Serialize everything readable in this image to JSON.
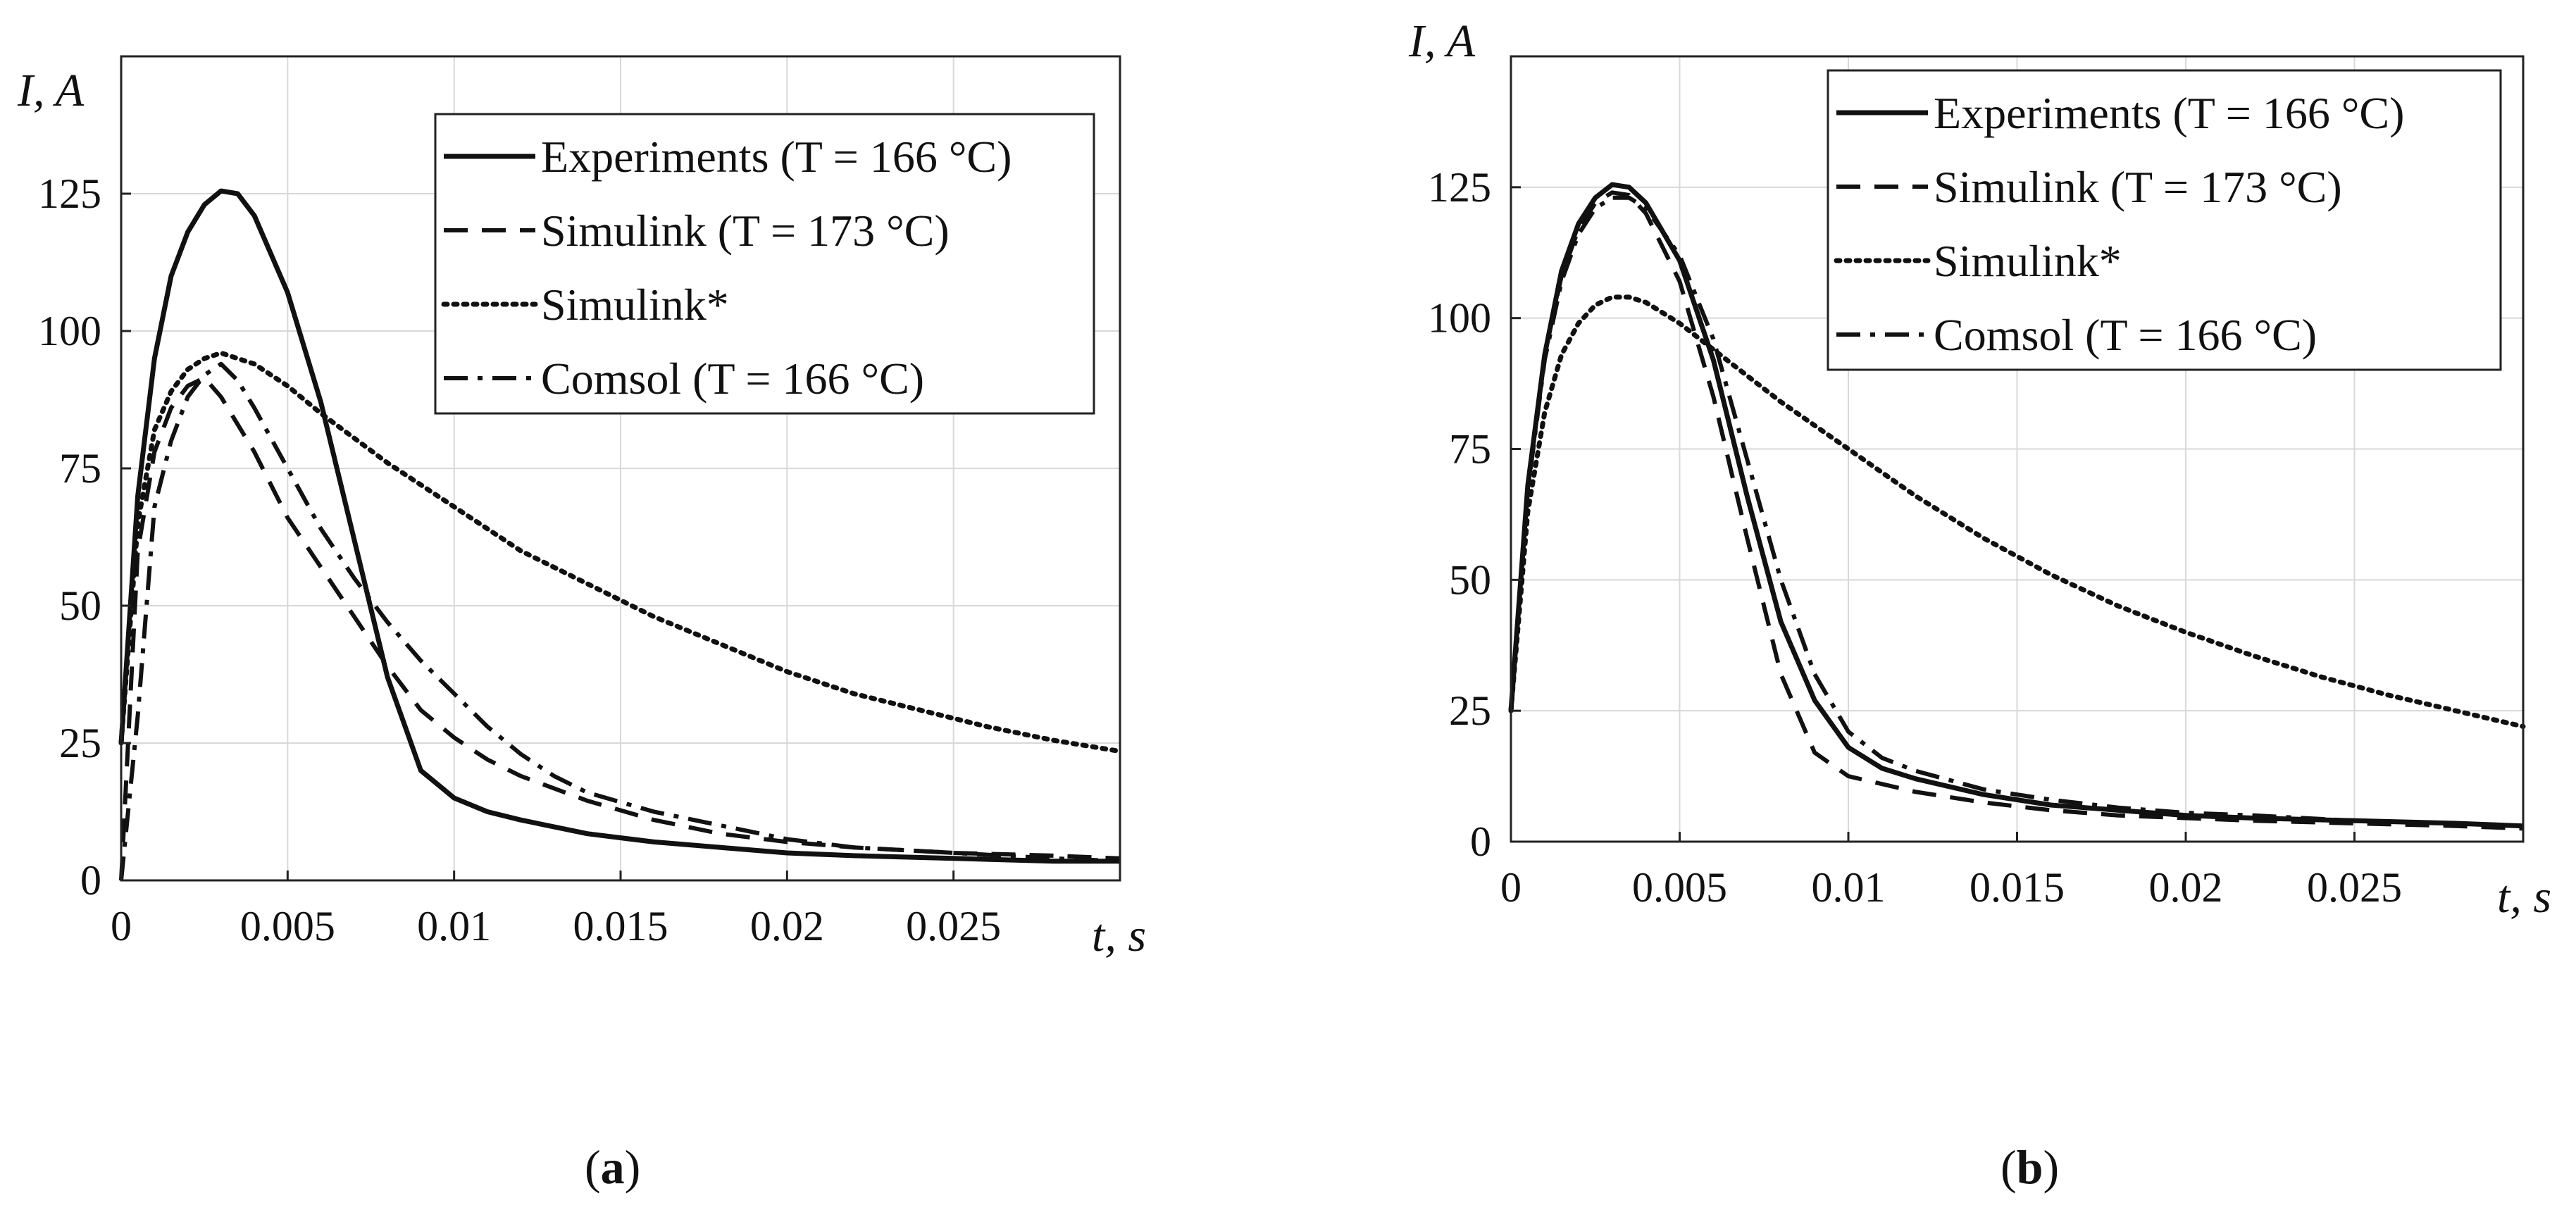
{
  "chart_data": [
    {
      "type": "line",
      "panel_label": "a",
      "xlabel": "t, s",
      "ylabel": "I, A",
      "xlim": [
        0,
        0.03
      ],
      "ylim": [
        0,
        150
      ],
      "xticks": [
        0,
        0.005,
        0.01,
        0.015,
        0.02,
        0.025
      ],
      "xtick_labels": [
        "0",
        "0.005",
        "0.01",
        "0.015",
        "0.02",
        "0.025"
      ],
      "yticks": [
        0,
        25,
        50,
        75,
        100,
        125
      ],
      "ytick_labels": [
        "0",
        "25",
        "50",
        "75",
        "100",
        "125"
      ],
      "grid": true,
      "legend_position": "top-right",
      "series": [
        {
          "name": "Experiments (T = 166 °C)",
          "style": "solid",
          "x": [
            0,
            0.0005,
            0.001,
            0.0015,
            0.002,
            0.0025,
            0.003,
            0.0035,
            0.004,
            0.005,
            0.006,
            0.007,
            0.008,
            0.009,
            0.01,
            0.011,
            0.012,
            0.014,
            0.016,
            0.018,
            0.02,
            0.022,
            0.025,
            0.028,
            0.03
          ],
          "y": [
            25,
            70,
            95,
            110,
            118,
            123,
            125.5,
            125,
            121,
            107,
            87,
            62,
            37,
            20,
            15,
            12.5,
            11,
            8.5,
            7,
            6,
            5,
            4.5,
            4,
            3.5,
            3.5
          ]
        },
        {
          "name": "Simulink (T = 173 °C)",
          "style": "dashed",
          "x": [
            0,
            0.0005,
            0.001,
            0.0015,
            0.002,
            0.0025,
            0.003,
            0.004,
            0.005,
            0.006,
            0.007,
            0.008,
            0.009,
            0.01,
            0.011,
            0.012,
            0.014,
            0.016,
            0.018,
            0.02,
            0.022,
            0.025,
            0.028,
            0.03
          ],
          "y": [
            0,
            60,
            78,
            86,
            90,
            91.5,
            88,
            78,
            66,
            57,
            48,
            39,
            31,
            26,
            22,
            19,
            14.5,
            11,
            8.5,
            7,
            6,
            5,
            4.5,
            4
          ]
        },
        {
          "name": "Simulink*",
          "style": "dotted",
          "x": [
            0,
            0.0005,
            0.001,
            0.0015,
            0.002,
            0.0025,
            0.003,
            0.004,
            0.005,
            0.006,
            0.008,
            0.01,
            0.012,
            0.014,
            0.016,
            0.018,
            0.02,
            0.022,
            0.024,
            0.026,
            0.028,
            0.03
          ],
          "y": [
            25,
            65,
            82,
            89,
            93,
            95,
            96,
            94,
            90,
            85,
            76,
            68,
            60,
            54,
            48,
            43,
            38,
            34,
            31,
            28,
            25.5,
            23.5
          ]
        },
        {
          "name": "Comsol (T = 166 °C)",
          "style": "dashdot",
          "x": [
            0,
            0.0005,
            0.001,
            0.0015,
            0.002,
            0.0025,
            0.003,
            0.0035,
            0.004,
            0.005,
            0.006,
            0.007,
            0.008,
            0.009,
            0.01,
            0.011,
            0.012,
            0.013,
            0.014,
            0.016,
            0.018,
            0.02,
            0.022,
            0.025,
            0.028,
            0.03
          ],
          "y": [
            0,
            30,
            68,
            80,
            88,
            92,
            94,
            91,
            86,
            75,
            64,
            55,
            47,
            40,
            34,
            28,
            23,
            19,
            16,
            12.5,
            10,
            7.5,
            6,
            5,
            4,
            3.5
          ]
        }
      ]
    },
    {
      "type": "line",
      "panel_label": "b",
      "xlabel": "t, s",
      "ylabel": "I, A",
      "xlim": [
        0,
        0.03
      ],
      "ylim": [
        0,
        150
      ],
      "xticks": [
        0,
        0.005,
        0.01,
        0.015,
        0.02,
        0.025
      ],
      "xtick_labels": [
        "0",
        "0.005",
        "0.01",
        "0.015",
        "0.02",
        "0.025"
      ],
      "yticks": [
        0,
        25,
        50,
        75,
        100,
        125
      ],
      "ytick_labels": [
        "0",
        "25",
        "50",
        "75",
        "100",
        "125"
      ],
      "grid": true,
      "legend_position": "top-right",
      "series": [
        {
          "name": "Experiments (T = 166 °C)",
          "style": "solid",
          "x": [
            0,
            0.0005,
            0.001,
            0.0015,
            0.002,
            0.0025,
            0.003,
            0.0035,
            0.004,
            0.005,
            0.006,
            0.007,
            0.008,
            0.009,
            0.01,
            0.011,
            0.012,
            0.014,
            0.016,
            0.018,
            0.02,
            0.022,
            0.025,
            0.028,
            0.03
          ],
          "y": [
            25,
            68,
            93,
            109,
            118,
            123,
            125.5,
            125,
            122,
            111,
            92,
            66,
            42,
            27,
            18,
            14,
            12,
            9,
            7,
            6,
            5,
            4.5,
            4,
            3.5,
            3
          ]
        },
        {
          "name": "Simulink (T = 173 °C)",
          "style": "dashed",
          "x": [
            0,
            0.0005,
            0.001,
            0.0015,
            0.002,
            0.0025,
            0.003,
            0.0035,
            0.004,
            0.005,
            0.006,
            0.007,
            0.008,
            0.009,
            0.01,
            0.011,
            0.012,
            0.014,
            0.016,
            0.018,
            0.02,
            0.022,
            0.025,
            0.028,
            0.03
          ],
          "y": [
            25,
            68,
            93,
            108,
            117,
            122,
            124,
            123.5,
            120,
            107,
            85,
            58,
            32,
            17,
            12.5,
            11,
            9.5,
            7.5,
            6,
            5,
            4.5,
            4,
            3.5,
            3,
            2.5
          ]
        },
        {
          "name": "Simulink*",
          "style": "dotted",
          "x": [
            0,
            0.0005,
            0.001,
            0.0015,
            0.002,
            0.0025,
            0.003,
            0.0035,
            0.004,
            0.005,
            0.006,
            0.008,
            0.01,
            0.012,
            0.014,
            0.016,
            0.018,
            0.02,
            0.022,
            0.024,
            0.026,
            0.028,
            0.03
          ],
          "y": [
            25,
            63,
            82,
            93,
            99,
            102.5,
            104,
            104,
            103,
            99,
            94,
            84,
            75,
            66,
            58,
            51,
            45,
            40,
            35.5,
            31.5,
            28,
            25,
            22
          ]
        },
        {
          "name": "Comsol (T = 166 °C)",
          "style": "dashdot",
          "x": [
            0,
            0.0005,
            0.001,
            0.0015,
            0.002,
            0.0025,
            0.003,
            0.0035,
            0.004,
            0.005,
            0.006,
            0.007,
            0.008,
            0.009,
            0.01,
            0.011,
            0.012,
            0.014,
            0.016,
            0.018,
            0.02,
            0.022,
            0.025,
            0.028,
            0.03
          ],
          "y": [
            25,
            67,
            92,
            107,
            116,
            121,
            123,
            123,
            121,
            112,
            96,
            73,
            50,
            32,
            21,
            16,
            13.5,
            10,
            8,
            6.5,
            5.5,
            5,
            4,
            3.5,
            3
          ]
        }
      ]
    }
  ]
}
